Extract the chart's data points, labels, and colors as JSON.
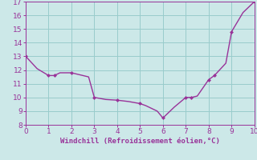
{
  "x": [
    0,
    0.5,
    1.0,
    1.25,
    1.5,
    2.0,
    2.25,
    2.75,
    3.0,
    3.5,
    4.0,
    4.5,
    5.0,
    5.25,
    5.75,
    6.0,
    6.5,
    7.0,
    7.25,
    7.5,
    8.0,
    8.25,
    8.75,
    9.0,
    9.5,
    10.0
  ],
  "y": [
    13.0,
    12.1,
    11.6,
    11.6,
    11.8,
    11.8,
    11.7,
    11.5,
    10.0,
    9.85,
    9.8,
    9.7,
    9.55,
    9.4,
    9.0,
    8.5,
    9.3,
    10.0,
    10.0,
    10.1,
    11.3,
    11.6,
    12.5,
    14.8,
    16.2,
    17.0
  ],
  "marker_x": [
    0,
    1.0,
    1.25,
    2.0,
    3.0,
    4.0,
    5.0,
    6.0,
    7.0,
    7.25,
    8.0,
    8.25,
    9.0,
    10.0
  ],
  "marker_y": [
    13.0,
    11.6,
    11.6,
    11.8,
    10.0,
    9.8,
    9.55,
    8.5,
    10.0,
    10.0,
    11.3,
    11.6,
    14.8,
    17.0
  ],
  "line_color": "#993399",
  "marker_color": "#993399",
  "bg_color": "#cce8e8",
  "grid_color": "#99cccc",
  "xlabel": "Windchill (Refroidissement éolien,°C)",
  "xlim": [
    0,
    10
  ],
  "ylim": [
    8,
    17
  ],
  "xticks": [
    0,
    1,
    2,
    3,
    4,
    5,
    6,
    7,
    8,
    9,
    10
  ],
  "yticks": [
    8,
    9,
    10,
    11,
    12,
    13,
    14,
    15,
    16,
    17
  ],
  "xlabel_fontsize": 6.5,
  "tick_fontsize": 6.5,
  "line_width": 1.0,
  "marker_size": 2.5
}
